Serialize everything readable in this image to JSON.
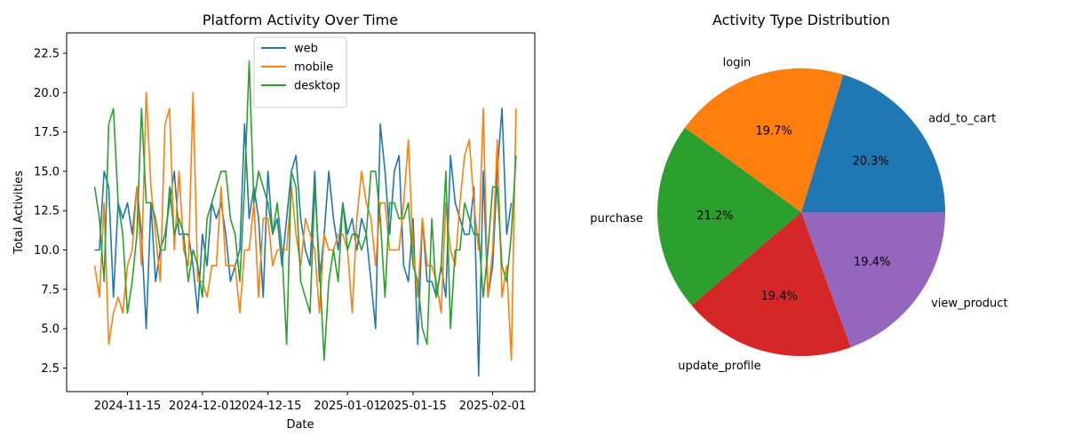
{
  "chart_data": [
    {
      "type": "line",
      "title": "Platform Activity Over Time",
      "xlabel": "Date",
      "ylabel": "Total Activities",
      "x_range": [
        "2024-11-02",
        "2025-02-10"
      ],
      "ylim": [
        1.0,
        23.8
      ],
      "x_ticks": [
        "2024-11-15",
        "2024-12-01",
        "2024-12-15",
        "2025-01-01",
        "2025-01-15",
        "2025-02-01"
      ],
      "y_ticks": [
        2.5,
        5.0,
        7.5,
        10.0,
        12.5,
        15.0,
        17.5,
        20.0,
        22.5
      ],
      "y_tick_labels": [
        "2.5",
        "5.0",
        "7.5",
        "10.0",
        "12.5",
        "15.0",
        "17.5",
        "20.0",
        "22.5"
      ],
      "grid": false,
      "legend": "top-center",
      "start_date": "2024-11-08",
      "series": [
        {
          "name": "web",
          "color": "#1f77b4",
          "values": [
            10,
            10,
            15,
            14,
            7,
            13,
            12,
            13,
            11,
            14,
            11,
            5,
            13,
            8,
            10,
            11,
            13,
            15,
            11,
            11,
            11,
            9,
            6,
            11,
            9,
            13,
            12,
            13,
            11,
            8,
            9,
            10,
            18,
            12,
            14,
            12,
            7,
            15,
            11,
            12,
            9,
            12,
            15,
            16,
            12,
            10,
            9,
            15,
            8,
            11,
            15,
            12,
            10,
            13,
            11,
            12,
            10,
            12,
            11,
            8,
            5,
            18,
            15,
            11,
            15,
            16,
            9,
            8,
            12,
            4,
            12,
            8,
            8,
            7,
            9,
            7,
            16,
            13,
            12,
            11,
            11,
            14,
            2,
            15,
            7,
            9,
            15,
            19,
            11,
            13
          ]
        },
        {
          "name": "mobile",
          "color": "#ff7f0e",
          "values": [
            9,
            7,
            13,
            4,
            6,
            7,
            6,
            9,
            10,
            14,
            9,
            20,
            14,
            11,
            8,
            18,
            19,
            10,
            15,
            10,
            9,
            20,
            8,
            8,
            7,
            9,
            9,
            14,
            9,
            9,
            9,
            6,
            10,
            10,
            13,
            7,
            12,
            12,
            9,
            10,
            10,
            10,
            14,
            11,
            9,
            12,
            11,
            10,
            6,
            11,
            10,
            10,
            11,
            11,
            10,
            6,
            12,
            15,
            13,
            12,
            9,
            13,
            13,
            10,
            10,
            10,
            13,
            17,
            10,
            7,
            12,
            9,
            9,
            8,
            6,
            13,
            10,
            9,
            13,
            16,
            17,
            13,
            10,
            19,
            7,
            10,
            17,
            7,
            9,
            3,
            19
          ]
        },
        {
          "name": "desktop",
          "color": "#2ca02c",
          "values": [
            14,
            12,
            8,
            18,
            19,
            13,
            11,
            6,
            8,
            11,
            19,
            13,
            13,
            12,
            10,
            10,
            14,
            11,
            12,
            11,
            8,
            10,
            9,
            7,
            12,
            13,
            14,
            15,
            15,
            12,
            11,
            8,
            14,
            22,
            13,
            15,
            14,
            13,
            11,
            13,
            10,
            4,
            15,
            14,
            8,
            7,
            6,
            14,
            9,
            3,
            8,
            10,
            8,
            13,
            10,
            11,
            11,
            10,
            11,
            15,
            15,
            12,
            7,
            13,
            13,
            12,
            12,
            13,
            9,
            8,
            5,
            4,
            12,
            7,
            9,
            15,
            5,
            10,
            10,
            13,
            12,
            11,
            11,
            7,
            10,
            14,
            14,
            9,
            8,
            11,
            16
          ]
        }
      ]
    },
    {
      "type": "pie",
      "title": "Activity Type Distribution",
      "slices": [
        {
          "label": "add_to_cart",
          "value": 20.3,
          "pct_label": "20.3%",
          "color": "#1f77b4"
        },
        {
          "label": "login",
          "value": 19.7,
          "pct_label": "19.7%",
          "color": "#ff7f0e"
        },
        {
          "label": "purchase",
          "value": 21.2,
          "pct_label": "21.2%",
          "color": "#2ca02c"
        },
        {
          "label": "update_profile",
          "value": 19.4,
          "pct_label": "19.4%",
          "color": "#d62728"
        },
        {
          "label": "view_product",
          "value": 19.4,
          "pct_label": "19.4%",
          "color": "#9467bd"
        }
      ]
    }
  ]
}
